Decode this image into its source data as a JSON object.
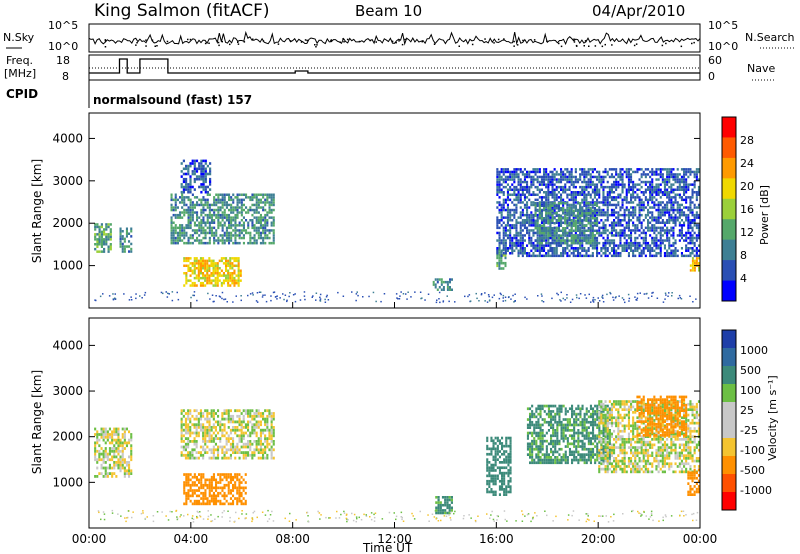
{
  "header": {
    "station": "King Salmon (fitACF)",
    "beam": "Beam 10",
    "date": "04/Apr/2010"
  },
  "noise_panel": {
    "left_label": "N.Sky",
    "right_label": "N.Search",
    "ticks": [
      "10^5",
      "10^0"
    ]
  },
  "freq_panel": {
    "left_label_1": "Freq.",
    "left_label_2": "[MHz]",
    "left_ticks": [
      "18",
      "8"
    ],
    "right_label": "Nave",
    "right_ticks": [
      "60",
      "0"
    ]
  },
  "cpid_panel": {
    "label": "CPID",
    "value": "normalsound (fast) 157"
  },
  "power_panel": {
    "ylabel": "Slant Range [km]",
    "yticks": [
      "4000",
      "3000",
      "2000",
      "1000"
    ],
    "colorbar_label": "Power [dB]",
    "colorbar_ticks": [
      "28",
      "24",
      "20",
      "16",
      "12",
      "8",
      "4"
    ]
  },
  "velocity_panel": {
    "ylabel": "Slant Range [km]",
    "yticks": [
      "4000",
      "3000",
      "2000",
      "1000"
    ],
    "colorbar_label": "Velocity [m s⁻¹]",
    "colorbar_ticks": [
      "1000",
      "500",
      "100",
      "25",
      "-25",
      "-100",
      "-500",
      "-1000"
    ]
  },
  "xaxis": {
    "label": "Time UT",
    "ticks": [
      "00:00",
      "04:00",
      "08:00",
      "12:00",
      "16:00",
      "20:00",
      "00:00"
    ]
  },
  "colors": {
    "power_scale": [
      "#0000ff",
      "#2a4fb4",
      "#3e7f94",
      "#55a86a",
      "#9bd03a",
      "#f0d800",
      "#ff9a00",
      "#ff5a00",
      "#ff0000"
    ],
    "velocity_scale": [
      "#1e3ea8",
      "#2f6aa0",
      "#3c8a7a",
      "#6cbf44",
      "#c8c8c8",
      "#c8c8c8",
      "#f4c430",
      "#ff9000",
      "#ff5000",
      "#ff0000"
    ]
  },
  "chart_data": [
    {
      "type": "heatmap",
      "title": "",
      "xlabel": "",
      "ylabel": "Slant Range [km]",
      "xlim": [
        "00:00",
        "24:00"
      ],
      "ylim": [
        0,
        4600
      ],
      "colorbar": {
        "label": "Power [dB]",
        "range": [
          0,
          32
        ]
      },
      "regions": [
        {
          "t": [
            0.2,
            0.9
          ],
          "r": [
            1300,
            2000
          ],
          "v": 12
        },
        {
          "t": [
            1.2,
            1.7
          ],
          "r": [
            1300,
            1900
          ],
          "v": 10
        },
        {
          "t": [
            3.2,
            7.3
          ],
          "r": [
            1500,
            2700
          ],
          "v": 10
        },
        {
          "t": [
            3.6,
            4.8
          ],
          "r": [
            2700,
            3500
          ],
          "v": 6
        },
        {
          "t": [
            3.7,
            6.0
          ],
          "r": [
            500,
            1200
          ],
          "v": 20
        },
        {
          "t": [
            16.0,
            16.4
          ],
          "r": [
            900,
            1400
          ],
          "v": 12
        },
        {
          "t": [
            16.0,
            24.0
          ],
          "r": [
            1200,
            3300
          ],
          "v": 6
        },
        {
          "t": [
            17.5,
            20.0
          ],
          "r": [
            1500,
            2500
          ],
          "v": 10
        },
        {
          "t": [
            23.6,
            24.0
          ],
          "r": [
            800,
            1200
          ],
          "v": 20
        },
        {
          "t": [
            13.5,
            14.3
          ],
          "r": [
            400,
            700
          ],
          "v": 10
        }
      ]
    },
    {
      "type": "heatmap",
      "title": "",
      "xlabel": "Time UT",
      "ylabel": "Slant Range [km]",
      "xlim": [
        "00:00",
        "24:00"
      ],
      "ylim": [
        0,
        4600
      ],
      "colorbar": {
        "label": "Velocity [m s⁻¹]",
        "range": [
          -1000,
          1000
        ]
      },
      "regions": [
        {
          "t": [
            0.2,
            1.7
          ],
          "r": [
            1100,
            2200
          ],
          "v": 0
        },
        {
          "t": [
            3.6,
            7.3
          ],
          "r": [
            1500,
            2600
          ],
          "v": 0
        },
        {
          "t": [
            3.7,
            6.2
          ],
          "r": [
            500,
            1200
          ],
          "v": -200
        },
        {
          "t": [
            13.6,
            14.3
          ],
          "r": [
            300,
            700
          ],
          "v": 150
        },
        {
          "t": [
            15.6,
            16.6
          ],
          "r": [
            700,
            2000
          ],
          "v": 200
        },
        {
          "t": [
            17.2,
            20.5
          ],
          "r": [
            1400,
            2700
          ],
          "v": 150
        },
        {
          "t": [
            20.0,
            24.0
          ],
          "r": [
            1200,
            2800
          ],
          "v": 0
        },
        {
          "t": [
            21.5,
            23.5
          ],
          "r": [
            2000,
            2900
          ],
          "v": -200
        },
        {
          "t": [
            23.5,
            24.0
          ],
          "r": [
            700,
            1300
          ],
          "v": -400
        }
      ]
    }
  ]
}
